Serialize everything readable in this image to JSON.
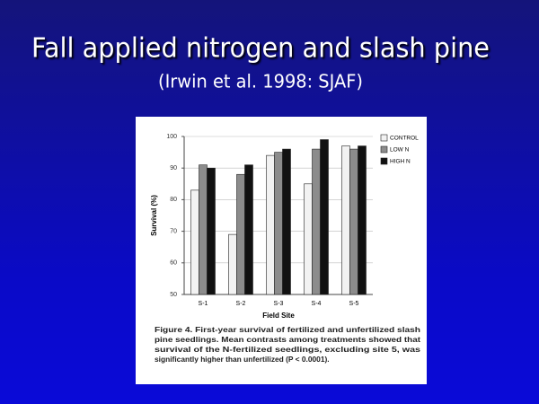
{
  "slide": {
    "title": "Fall applied nitrogen and slash pine",
    "subtitle": "(Irwin et al. 1998: SJAF)"
  },
  "chart_data": {
    "type": "bar",
    "categories": [
      "S-1",
      "S-2",
      "S-3",
      "S-4",
      "S-5"
    ],
    "series": [
      {
        "name": "CONTROL",
        "color": "#f2f2f2",
        "values": [
          83,
          69,
          94,
          85,
          97
        ]
      },
      {
        "name": "LOW N",
        "color": "#8c8c8c",
        "values": [
          91,
          88,
          95,
          96,
          96
        ]
      },
      {
        "name": "HIGH N",
        "color": "#111111",
        "values": [
          90,
          91,
          96,
          99,
          97
        ]
      }
    ],
    "ylim": [
      50,
      100
    ],
    "yticks": [
      50,
      60,
      70,
      80,
      90,
      100
    ],
    "ylabel": "Survival (%)",
    "xlabel": "Field Site",
    "legend": "right",
    "caption": [
      "Figure 4.  First-year survival of fertilized and unfertilized slash",
      "pine seedlings. Mean contrasts among treatments showed that",
      "survival of the N-fertilized seedlings, excluding site 5, was",
      "significantly higher than unfertilized (P < 0.0001)."
    ]
  }
}
